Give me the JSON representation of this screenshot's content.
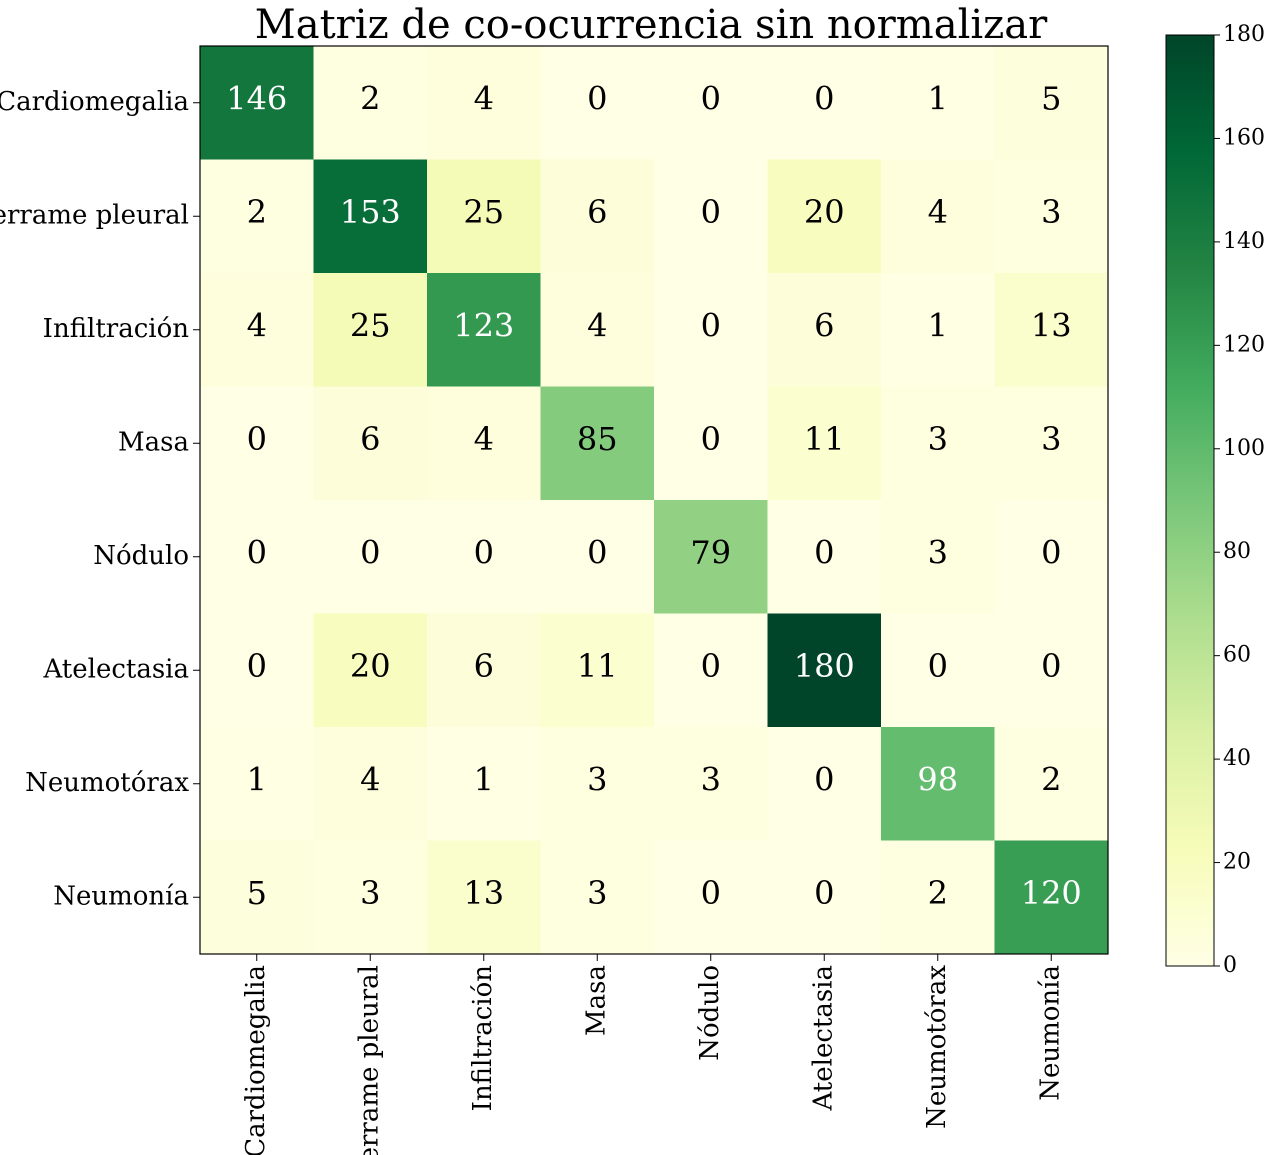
{
  "chart_data": {
    "type": "heatmap",
    "title": "Matriz de co-ocurrencia sin normalizar",
    "x_labels": [
      "Cardiomegalia",
      "Derrame pleural",
      "Infiltración",
      "Masa",
      "Nódulo",
      "Atelectasia",
      "Neumotórax",
      "Neumonía"
    ],
    "y_labels": [
      "Cardiomegalia",
      "Derrame pleural",
      "Infiltración",
      "Masa",
      "Nódulo",
      "Atelectasia",
      "Neumotórax",
      "Neumonía"
    ],
    "matrix": [
      [
        146,
        2,
        4,
        0,
        0,
        0,
        1,
        5
      ],
      [
        2,
        153,
        25,
        6,
        0,
        20,
        4,
        3
      ],
      [
        4,
        25,
        123,
        4,
        0,
        6,
        1,
        13
      ],
      [
        0,
        6,
        4,
        85,
        0,
        11,
        3,
        3
      ],
      [
        0,
        0,
        0,
        0,
        79,
        0,
        3,
        0
      ],
      [
        0,
        20,
        6,
        11,
        0,
        180,
        0,
        0
      ],
      [
        1,
        4,
        1,
        3,
        3,
        0,
        98,
        2
      ],
      [
        5,
        3,
        13,
        3,
        0,
        0,
        2,
        120
      ]
    ],
    "colormap": "YlGn",
    "value_range": [
      0,
      180
    ],
    "colorbar": {
      "ticks": [
        0,
        20,
        40,
        60,
        80,
        100,
        120,
        140,
        160,
        180
      ]
    }
  }
}
